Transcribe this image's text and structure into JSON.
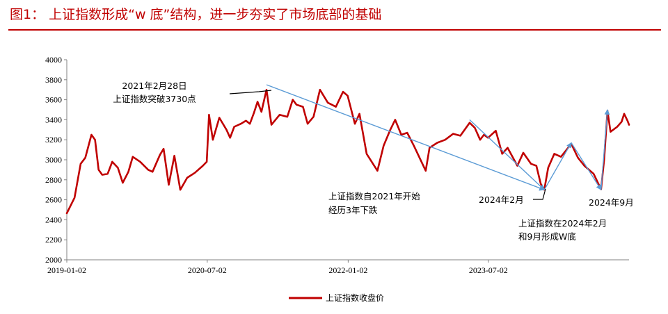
{
  "figure": {
    "title": "图1： 上证指数形成“w 底”结构，进一步夯实了市场底部的基础"
  },
  "chart_data": {
    "type": "line",
    "title": "",
    "xlabel": "",
    "ylabel": "",
    "ylim": [
      2000,
      4000
    ],
    "y_ticks": [
      2000,
      2200,
      2400,
      2600,
      2800,
      3000,
      3200,
      3400,
      3600,
      3800,
      4000
    ],
    "x_ticks": [
      "2019-01-02",
      "2020-07-02",
      "2022-01-02",
      "2023-07-02"
    ],
    "xlim": [
      "2019-01-02",
      "2024-12-31"
    ],
    "grid": false,
    "legend_position": "bottom",
    "series": [
      {
        "name": "上证指数收盘价",
        "color": "#c00000",
        "points": [
          [
            "2019-01-02",
            2465
          ],
          [
            "2019-02-01",
            2620
          ],
          [
            "2019-02-25",
            2960
          ],
          [
            "2019-03-15",
            3020
          ],
          [
            "2019-04-08",
            3250
          ],
          [
            "2019-04-22",
            3200
          ],
          [
            "2019-05-06",
            2900
          ],
          [
            "2019-05-20",
            2850
          ],
          [
            "2019-06-10",
            2860
          ],
          [
            "2019-06-28",
            2980
          ],
          [
            "2019-07-20",
            2920
          ],
          [
            "2019-08-08",
            2770
          ],
          [
            "2019-08-30",
            2880
          ],
          [
            "2019-09-16",
            3030
          ],
          [
            "2019-10-15",
            2980
          ],
          [
            "2019-11-15",
            2900
          ],
          [
            "2019-12-02",
            2880
          ],
          [
            "2019-12-31",
            3050
          ],
          [
            "2020-01-14",
            3110
          ],
          [
            "2020-02-03",
            2750
          ],
          [
            "2020-02-25",
            3040
          ],
          [
            "2020-03-19",
            2700
          ],
          [
            "2020-04-15",
            2820
          ],
          [
            "2020-05-15",
            2870
          ],
          [
            "2020-06-15",
            2940
          ],
          [
            "2020-06-30",
            2980
          ],
          [
            "2020-07-09",
            3450
          ],
          [
            "2020-07-24",
            3200
          ],
          [
            "2020-08-18",
            3420
          ],
          [
            "2020-09-15",
            3300
          ],
          [
            "2020-09-29",
            3220
          ],
          [
            "2020-10-15",
            3330
          ],
          [
            "2020-11-10",
            3360
          ],
          [
            "2020-11-30",
            3390
          ],
          [
            "2020-12-15",
            3360
          ],
          [
            "2020-12-31",
            3470
          ],
          [
            "2021-01-14",
            3580
          ],
          [
            "2021-01-29",
            3480
          ],
          [
            "2021-02-18",
            3700
          ],
          [
            "2021-03-09",
            3350
          ],
          [
            "2021-04-10",
            3450
          ],
          [
            "2021-05-10",
            3430
          ],
          [
            "2021-05-31",
            3600
          ],
          [
            "2021-06-15",
            3550
          ],
          [
            "2021-07-10",
            3530
          ],
          [
            "2021-07-28",
            3360
          ],
          [
            "2021-08-20",
            3430
          ],
          [
            "2021-09-14",
            3700
          ],
          [
            "2021-10-15",
            3570
          ],
          [
            "2021-11-15",
            3530
          ],
          [
            "2021-12-13",
            3680
          ],
          [
            "2021-12-31",
            3640
          ],
          [
            "2022-01-28",
            3360
          ],
          [
            "2022-02-15",
            3460
          ],
          [
            "2022-03-15",
            3060
          ],
          [
            "2022-04-26",
            2890
          ],
          [
            "2022-05-20",
            3140
          ],
          [
            "2022-06-15",
            3300
          ],
          [
            "2022-07-04",
            3400
          ],
          [
            "2022-07-28",
            3250
          ],
          [
            "2022-08-20",
            3270
          ],
          [
            "2022-09-15",
            3140
          ],
          [
            "2022-10-31",
            2890
          ],
          [
            "2022-11-15",
            3120
          ],
          [
            "2022-12-15",
            3170
          ],
          [
            "2023-01-15",
            3200
          ],
          [
            "2023-02-15",
            3260
          ],
          [
            "2023-03-15",
            3240
          ],
          [
            "2023-04-20",
            3370
          ],
          [
            "2023-05-10",
            3320
          ],
          [
            "2023-05-31",
            3200
          ],
          [
            "2023-06-15",
            3250
          ],
          [
            "2023-07-01",
            3220
          ],
          [
            "2023-07-31",
            3290
          ],
          [
            "2023-08-25",
            3060
          ],
          [
            "2023-09-15",
            3120
          ],
          [
            "2023-10-23",
            2940
          ],
          [
            "2023-11-15",
            3070
          ],
          [
            "2023-12-15",
            2960
          ],
          [
            "2024-01-05",
            2940
          ],
          [
            "2024-01-22",
            2760
          ],
          [
            "2024-02-05",
            2700
          ],
          [
            "2024-02-20",
            2920
          ],
          [
            "2024-03-15",
            3060
          ],
          [
            "2024-04-10",
            3030
          ],
          [
            "2024-05-20",
            3160
          ],
          [
            "2024-06-15",
            3020
          ],
          [
            "2024-07-10",
            2940
          ],
          [
            "2024-08-15",
            2860
          ],
          [
            "2024-09-13",
            2705
          ],
          [
            "2024-09-25",
            3000
          ],
          [
            "2024-10-08",
            3490
          ],
          [
            "2024-10-20",
            3280
          ],
          [
            "2024-11-15",
            3330
          ],
          [
            "2024-12-02",
            3380
          ],
          [
            "2024-12-12",
            3460
          ],
          [
            "2024-12-25",
            3390
          ],
          [
            "2024-12-31",
            3350
          ]
        ]
      }
    ],
    "trend_arrows": [
      {
        "from": [
          "2021-02-18",
          3750
        ],
        "to": [
          "2024-02-05",
          2700
        ]
      },
      {
        "from": [
          "2023-04-20",
          3400
        ],
        "to": [
          "2024-02-05",
          2700
        ]
      },
      {
        "from": [
          "2024-02-05",
          2700
        ],
        "to": [
          "2024-05-20",
          3170
        ]
      },
      {
        "from": [
          "2024-05-20",
          3170
        ],
        "to": [
          "2024-09-13",
          2700
        ]
      },
      {
        "from": [
          "2024-09-13",
          2700
        ],
        "to": [
          "2024-10-08",
          3500
        ]
      }
    ],
    "annotations": [
      {
        "id": "peak",
        "lines": [
          "2021年2月28日",
          "上证指数突破3730点"
        ]
      },
      {
        "id": "decline",
        "lines": [
          "上证指数自2021年开始",
          "经历3年下跌"
        ]
      },
      {
        "id": "feb2024",
        "lines": [
          "2024年2月"
        ]
      },
      {
        "id": "sep2024",
        "lines": [
          "2024年9月"
        ]
      },
      {
        "id": "wbottom",
        "lines": [
          "上证指数在2024年2月",
          "和9月形成W底"
        ]
      }
    ]
  }
}
